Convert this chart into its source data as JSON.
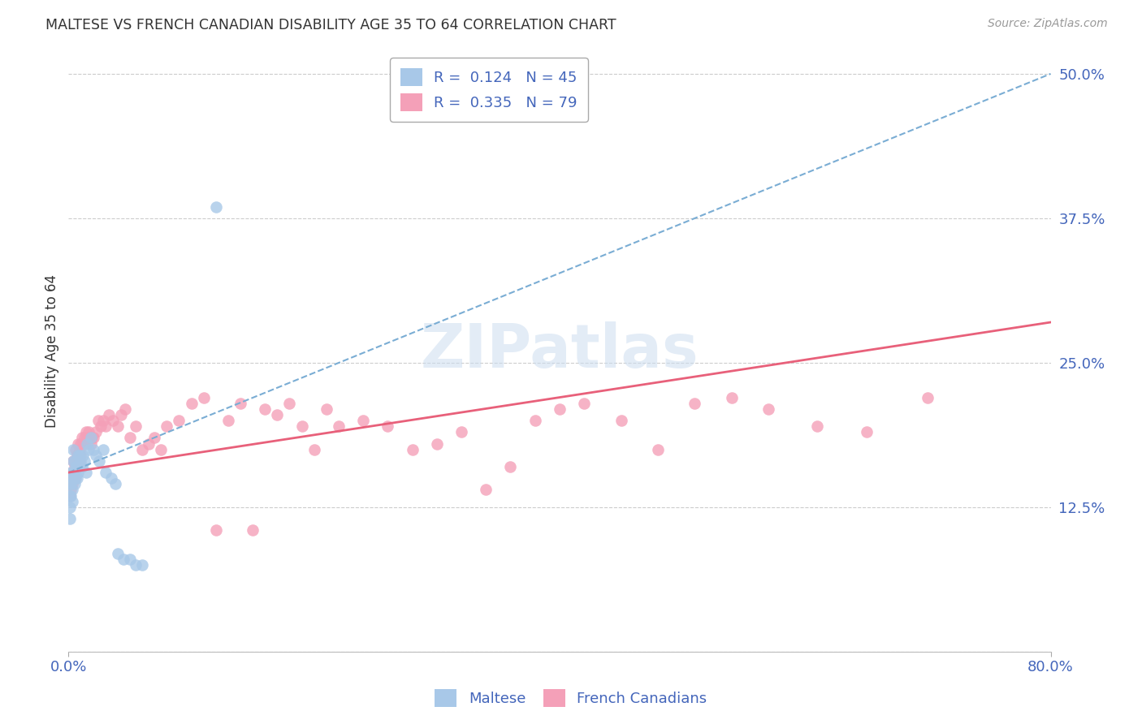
{
  "title": "MALTESE VS FRENCH CANADIAN DISABILITY AGE 35 TO 64 CORRELATION CHART",
  "source": "Source: ZipAtlas.com",
  "ylabel": "Disability Age 35 to 64",
  "xlabel": "",
  "xlim": [
    0.0,
    0.8
  ],
  "ylim": [
    0.0,
    0.52
  ],
  "xticks": [
    0.0,
    0.8
  ],
  "xticklabels": [
    "0.0%",
    "80.0%"
  ],
  "yticks": [
    0.0,
    0.125,
    0.25,
    0.375,
    0.5
  ],
  "yticklabels": [
    "",
    "12.5%",
    "25.0%",
    "37.5%",
    "50.0%"
  ],
  "maltese_R": 0.124,
  "maltese_N": 45,
  "french_R": 0.335,
  "french_N": 79,
  "maltese_color": "#a8c8e8",
  "french_color": "#f4a0b8",
  "maltese_line_color": "#7aadd4",
  "french_line_color": "#e8607a",
  "title_color": "#333333",
  "axis_color": "#4466bb",
  "maltese_x": [
    0.001,
    0.001,
    0.001,
    0.001,
    0.002,
    0.002,
    0.002,
    0.003,
    0.003,
    0.003,
    0.004,
    0.004,
    0.004,
    0.005,
    0.005,
    0.005,
    0.006,
    0.006,
    0.007,
    0.007,
    0.008,
    0.008,
    0.009,
    0.009,
    0.01,
    0.011,
    0.012,
    0.013,
    0.014,
    0.015,
    0.016,
    0.018,
    0.02,
    0.022,
    0.025,
    0.028,
    0.03,
    0.035,
    0.038,
    0.04,
    0.045,
    0.05,
    0.055,
    0.06,
    0.12
  ],
  "maltese_y": [
    0.145,
    0.135,
    0.125,
    0.115,
    0.155,
    0.145,
    0.135,
    0.15,
    0.14,
    0.13,
    0.175,
    0.165,
    0.155,
    0.165,
    0.155,
    0.145,
    0.16,
    0.15,
    0.16,
    0.15,
    0.17,
    0.155,
    0.17,
    0.16,
    0.165,
    0.16,
    0.17,
    0.165,
    0.155,
    0.18,
    0.175,
    0.185,
    0.175,
    0.17,
    0.165,
    0.175,
    0.155,
    0.15,
    0.145,
    0.085,
    0.08,
    0.08,
    0.075,
    0.075,
    0.385
  ],
  "french_x": [
    0.001,
    0.001,
    0.002,
    0.002,
    0.003,
    0.003,
    0.004,
    0.004,
    0.005,
    0.005,
    0.006,
    0.006,
    0.007,
    0.007,
    0.008,
    0.008,
    0.009,
    0.009,
    0.01,
    0.01,
    0.011,
    0.012,
    0.013,
    0.014,
    0.015,
    0.016,
    0.017,
    0.018,
    0.019,
    0.02,
    0.022,
    0.024,
    0.026,
    0.028,
    0.03,
    0.033,
    0.036,
    0.04,
    0.043,
    0.046,
    0.05,
    0.055,
    0.06,
    0.065,
    0.07,
    0.075,
    0.08,
    0.09,
    0.1,
    0.11,
    0.12,
    0.13,
    0.14,
    0.15,
    0.16,
    0.17,
    0.18,
    0.19,
    0.2,
    0.21,
    0.22,
    0.24,
    0.26,
    0.28,
    0.3,
    0.32,
    0.34,
    0.36,
    0.38,
    0.4,
    0.42,
    0.45,
    0.48,
    0.51,
    0.54,
    0.57,
    0.61,
    0.65,
    0.7
  ],
  "french_y": [
    0.145,
    0.135,
    0.15,
    0.14,
    0.155,
    0.145,
    0.165,
    0.155,
    0.16,
    0.15,
    0.175,
    0.165,
    0.17,
    0.16,
    0.18,
    0.17,
    0.175,
    0.165,
    0.18,
    0.17,
    0.185,
    0.18,
    0.185,
    0.19,
    0.185,
    0.19,
    0.185,
    0.18,
    0.185,
    0.185,
    0.19,
    0.2,
    0.195,
    0.2,
    0.195,
    0.205,
    0.2,
    0.195,
    0.205,
    0.21,
    0.185,
    0.195,
    0.175,
    0.18,
    0.185,
    0.175,
    0.195,
    0.2,
    0.215,
    0.22,
    0.105,
    0.2,
    0.215,
    0.105,
    0.21,
    0.205,
    0.215,
    0.195,
    0.175,
    0.21,
    0.195,
    0.2,
    0.195,
    0.175,
    0.18,
    0.19,
    0.14,
    0.16,
    0.2,
    0.21,
    0.215,
    0.2,
    0.175,
    0.215,
    0.22,
    0.21,
    0.195,
    0.19,
    0.22
  ]
}
